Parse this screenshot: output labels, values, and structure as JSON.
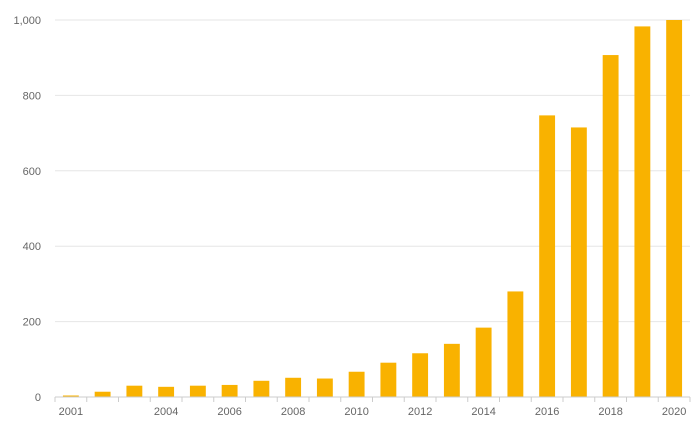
{
  "chart_data": {
    "type": "bar",
    "title": "",
    "xlabel": "",
    "ylabel": "",
    "categories": [
      "2001",
      "2002",
      "2003",
      "2004",
      "2005",
      "2006",
      "2007",
      "2008",
      "2009",
      "2010",
      "2011",
      "2012",
      "2013",
      "2014",
      "2015",
      "2016",
      "2017",
      "2018",
      "2019",
      "2020"
    ],
    "x_tick_labels": [
      "2001",
      "2004",
      "2006",
      "2008",
      "2010",
      "2012",
      "2014",
      "2016",
      "2018",
      "2020"
    ],
    "values": [
      4,
      14,
      30,
      27,
      30,
      32,
      43,
      51,
      49,
      67,
      91,
      116,
      141,
      184,
      280,
      747,
      715,
      907,
      983,
      1000
    ],
    "ylim": [
      0,
      1000
    ],
    "y_ticks": [
      0,
      200,
      400,
      600,
      800,
      1000
    ],
    "y_tick_labels": [
      "0",
      "200",
      "400",
      "600",
      "800",
      "1,000"
    ],
    "grid": true,
    "legend": "none",
    "bar_color": "#F9B200"
  }
}
